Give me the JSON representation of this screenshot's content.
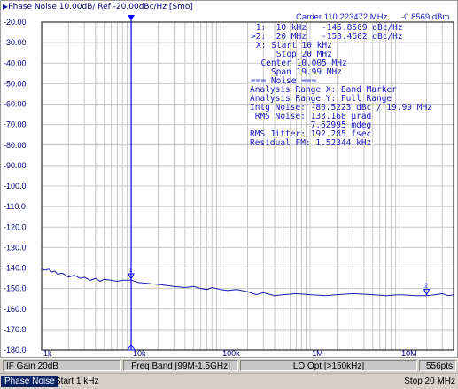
{
  "window": {
    "title": "Phase Noise 10.00dB/ Ref -20.00dBc/Hz [Smo]",
    "active_marker_readout": "Carrier 110.223472 MHz",
    "carrier_power": "-0.8569 dBm"
  },
  "readout": {
    "marker1": " 1:  10 kHz   -145.8569 dBc/Hz",
    "marker2": ">2:  20 MHz   -153.4602 dBc/Hz",
    "x_start": "X: Start 10 kHz",
    "x_stop": "    Stop 20 MHz",
    "center": "  Center 10.005 MHz",
    "span": "    Span 19.99 MHz",
    "noise_header": "=== Noise ===",
    "range_x": "Analysis Range X: Band Marker",
    "range_y": "Analysis Range Y: Full Range",
    "intg_noise": "Intg Noise: -80.5223 dBc / 19.99 MHz",
    "rms_noise": " RMS Noise: 133.168 µrad",
    "rms_noise_deg": "            7.62995 mdeg",
    "rms_jitter": "RMS Jitter: 192.285 fsec",
    "residual_fm": "Residual FM: 1.52344 kHz"
  },
  "chart_data": {
    "type": "line",
    "title": "Phase Noise 10.00dB/ Ref -20.00dBc/Hz [Smo]",
    "xlabel": "",
    "ylabel": "",
    "x_scale": "log",
    "xlim": [
      1000,
      40000000
    ],
    "ylim": [
      -180,
      -20
    ],
    "grid": true,
    "y_ticks": [
      "-20.00",
      "-30.00",
      "-40.00",
      "-50.00",
      "-60.00",
      "-70.00",
      "-80.00",
      "-90.00",
      "-100.0",
      "-110.0",
      "-120.0",
      "-130.0",
      "-140.0",
      "-150.0",
      "-160.0",
      "-170.0",
      "-180.0"
    ],
    "x_ticks": [
      "1k",
      "10k",
      "100k",
      "1M",
      "10M"
    ],
    "series": [
      {
        "color": "#1a1ab0",
        "x": [
          1000,
          1100,
          1200,
          1300,
          1400,
          1500,
          1700,
          2000,
          2300,
          2700,
          3000,
          3500,
          4000,
          4500,
          5000,
          6000,
          7000,
          8000,
          10000,
          12000,
          15000,
          20000,
          25000,
          30000,
          40000,
          50000,
          60000,
          70000,
          80000,
          100000,
          120000,
          150000,
          200000,
          250000,
          300000,
          400000,
          500000,
          700000,
          1000000,
          1500000,
          2000000,
          3000000,
          5000000,
          7000000,
          10000000,
          15000000,
          20000000,
          25000000,
          30000000,
          35000000,
          40000000
        ],
        "y": [
          -140.5,
          -141.0,
          -140.5,
          -142.0,
          -141.5,
          -143.0,
          -142.5,
          -144.5,
          -143.5,
          -145.0,
          -144.5,
          -146.0,
          -145.0,
          -146.5,
          -145.5,
          -146.0,
          -146.5,
          -146.0,
          -145.9,
          -147.0,
          -147.5,
          -148.0,
          -148.5,
          -149.0,
          -149.5,
          -149.0,
          -150.0,
          -150.5,
          -149.5,
          -150.5,
          -151.0,
          -150.5,
          -151.5,
          -153.0,
          -152.0,
          -153.5,
          -153.0,
          -152.5,
          -153.0,
          -153.5,
          -153.0,
          -152.5,
          -153.0,
          -153.5,
          -153.0,
          -153.5,
          -153.5,
          -153.0,
          -152.5,
          -153.5,
          -153.0
        ]
      }
    ],
    "markers": [
      {
        "label": "1",
        "x": 10000,
        "y": -145.8569
      },
      {
        "label": "2",
        "x": 20000000,
        "y": -153.4602
      }
    ]
  },
  "colors": {
    "trace": "#1a1ab0",
    "grid": "#c8c8c8",
    "marker": "#0000ff",
    "tick_text": "#00007a",
    "active_tab_bg": "#0a246a"
  },
  "statusbar": {
    "if_gain": "IF Gain 20dB",
    "freq_band": "Freq Band [99M-1.5GHz]",
    "lo_opt": "LO Opt [>150kHz]",
    "points": "556pts"
  },
  "taskbar": {
    "trace_tab": "Phase Noise",
    "start": "Start 1 kHz",
    "stop": "Stop 20 MHz"
  }
}
